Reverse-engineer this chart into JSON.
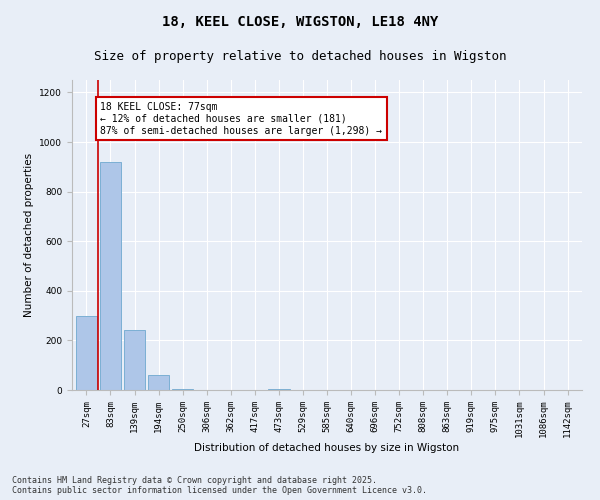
{
  "title": "18, KEEL CLOSE, WIGSTON, LE18 4NY",
  "subtitle": "Size of property relative to detached houses in Wigston",
  "xlabel": "Distribution of detached houses by size in Wigston",
  "ylabel": "Number of detached properties",
  "footnote": "Contains HM Land Registry data © Crown copyright and database right 2025.\nContains public sector information licensed under the Open Government Licence v3.0.",
  "categories": [
    "27sqm",
    "83sqm",
    "139sqm",
    "194sqm",
    "250sqm",
    "306sqm",
    "362sqm",
    "417sqm",
    "473sqm",
    "529sqm",
    "585sqm",
    "640sqm",
    "696sqm",
    "752sqm",
    "808sqm",
    "863sqm",
    "919sqm",
    "975sqm",
    "1031sqm",
    "1086sqm",
    "1142sqm"
  ],
  "values": [
    300,
    920,
    240,
    60,
    5,
    0,
    0,
    0,
    5,
    0,
    0,
    0,
    0,
    0,
    0,
    0,
    0,
    0,
    0,
    0,
    0
  ],
  "bar_color": "#aec6e8",
  "bar_edge_color": "#7bafd4",
  "property_line_index": 0.5,
  "annotation_text": "18 KEEL CLOSE: 77sqm\n← 12% of detached houses are smaller (181)\n87% of semi-detached houses are larger (1,298) →",
  "annotation_box_color": "#ffffff",
  "annotation_box_edge": "#cc0000",
  "vline_color": "#cc0000",
  "ylim": [
    0,
    1250
  ],
  "background_color": "#e8eef7",
  "grid_color": "#ffffff",
  "title_fontsize": 10,
  "subtitle_fontsize": 9,
  "axis_label_fontsize": 7.5,
  "tick_fontsize": 6.5,
  "annotation_fontsize": 7,
  "footnote_fontsize": 6
}
